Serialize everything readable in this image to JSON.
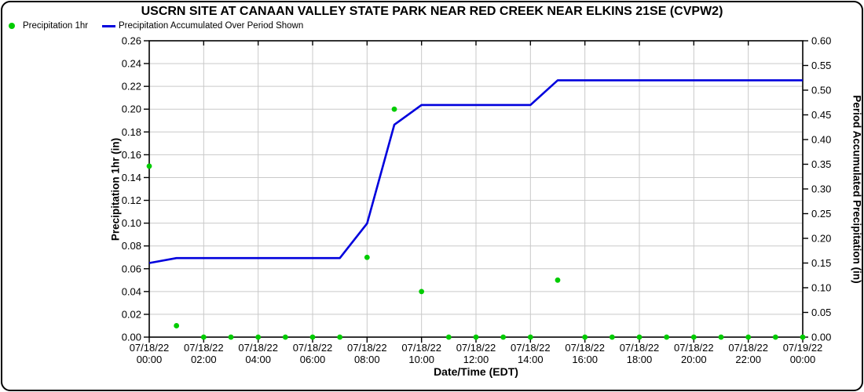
{
  "chart_data": {
    "type": "line",
    "title": "USCRN SITE AT CANAAN VALLEY STATE PARK NEAR RED CREEK NEAR ELKINS 21SE (CVPW2)",
    "xlabel": "Date/Time (EDT)",
    "left_axis": {
      "label": "Precipitation 1hr (in)",
      "min": 0.0,
      "max": 0.26,
      "step": 0.02
    },
    "right_axis": {
      "label": "Period Accumulated Precipitation (in)",
      "min": 0.0,
      "max": 0.6,
      "step": 0.05
    },
    "x_axis": {
      "unit": "hour",
      "min": 0,
      "max": 24,
      "tick_interval_hours": 2
    },
    "x_ticks": [
      {
        "hour": 0,
        "date": "07/18/22",
        "time": "00:00"
      },
      {
        "hour": 2,
        "date": "07/18/22",
        "time": "02:00"
      },
      {
        "hour": 4,
        "date": "07/18/22",
        "time": "04:00"
      },
      {
        "hour": 6,
        "date": "07/18/22",
        "time": "06:00"
      },
      {
        "hour": 8,
        "date": "07/18/22",
        "time": "08:00"
      },
      {
        "hour": 10,
        "date": "07/18/22",
        "time": "10:00"
      },
      {
        "hour": 12,
        "date": "07/18/22",
        "time": "12:00"
      },
      {
        "hour": 14,
        "date": "07/18/22",
        "time": "14:00"
      },
      {
        "hour": 16,
        "date": "07/18/22",
        "time": "16:00"
      },
      {
        "hour": 18,
        "date": "07/18/22",
        "time": "18:00"
      },
      {
        "hour": 20,
        "date": "07/18/22",
        "time": "20:00"
      },
      {
        "hour": 22,
        "date": "07/18/22",
        "time": "22:00"
      },
      {
        "hour": 24,
        "date": "07/19/22",
        "time": "00:00"
      }
    ],
    "series": [
      {
        "name": "Precipitation 1hr",
        "type": "scatter",
        "axis": "left",
        "color": "#00CC00",
        "x_hours": [
          0,
          1,
          2,
          3,
          4,
          5,
          6,
          7,
          8,
          9,
          10,
          11,
          12,
          13,
          14,
          15,
          16,
          17,
          18,
          19,
          20,
          21,
          22,
          23,
          24
        ],
        "values": [
          0.15,
          0.01,
          0.0,
          0.0,
          0.0,
          0.0,
          0.0,
          0.0,
          0.07,
          0.2,
          0.04,
          0.0,
          0.0,
          0.0,
          0.0,
          0.05,
          0.0,
          0.0,
          0.0,
          0.0,
          0.0,
          0.0,
          0.0,
          0.0,
          0.0
        ]
      },
      {
        "name": "Precipitation Accumulated Over Period Shown",
        "type": "line",
        "axis": "right",
        "color": "#0000DD",
        "x_hours": [
          0,
          1,
          2,
          3,
          4,
          5,
          6,
          7,
          8,
          9,
          10,
          11,
          12,
          13,
          14,
          15,
          16,
          17,
          18,
          19,
          20,
          21,
          22,
          23,
          24
        ],
        "values": [
          0.15,
          0.16,
          0.16,
          0.16,
          0.16,
          0.16,
          0.16,
          0.16,
          0.23,
          0.43,
          0.47,
          0.47,
          0.47,
          0.47,
          0.47,
          0.52,
          0.52,
          0.52,
          0.52,
          0.52,
          0.52,
          0.52,
          0.52,
          0.52,
          0.52
        ]
      }
    ],
    "grid": true,
    "grid_color": "#C9C9C9",
    "axis_color": "#000000",
    "legend_position": "top-left"
  },
  "legend": {
    "items": [
      {
        "label": "Precipitation 1hr",
        "marker": "dot",
        "color": "#00CC00"
      },
      {
        "label": "Precipitation Accumulated Over Period Shown",
        "marker": "line",
        "color": "#0000DD"
      }
    ]
  }
}
